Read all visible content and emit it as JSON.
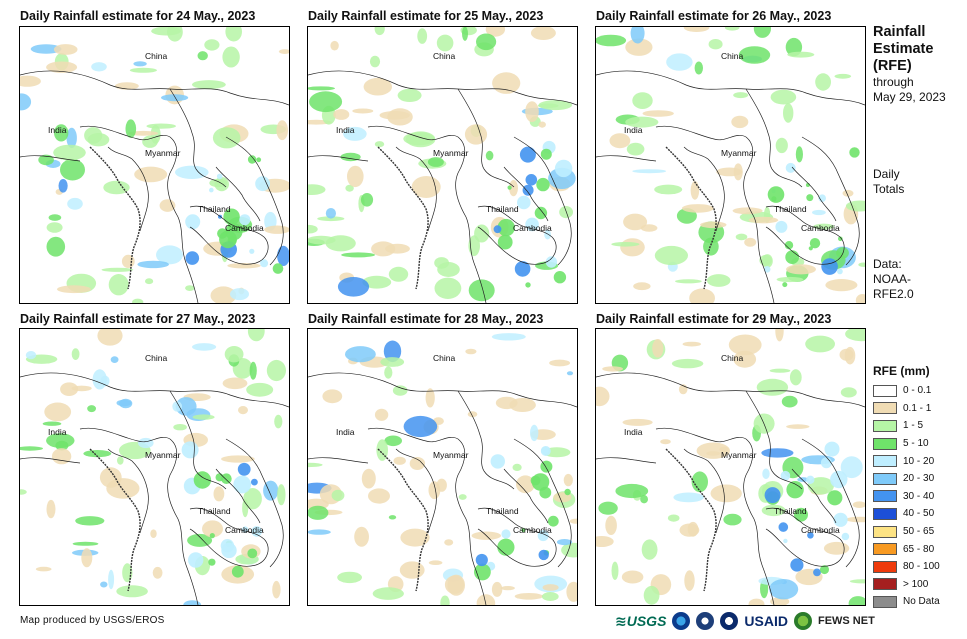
{
  "panels": [
    {
      "title": "Daily Rainfall estimate for 24 May., 2023"
    },
    {
      "title": "Daily Rainfall estimate for 25 May., 2023"
    },
    {
      "title": "Daily Rainfall estimate for 26 May., 2023"
    },
    {
      "title": "Daily Rainfall estimate for 27 May., 2023"
    },
    {
      "title": "Daily Rainfall estimate for 28 May., 2023"
    },
    {
      "title": "Daily Rainfall estimate for 29 May., 2023"
    }
  ],
  "map_labels": {
    "china": "China",
    "india": "India",
    "myanmar": "Myanmar",
    "thailand": "Thailand",
    "cambodia": "Cambodia"
  },
  "sidebar": {
    "title_line1": "Rainfall",
    "title_line2": "Estimate",
    "title_line3": "(RFE)",
    "through": "through",
    "date": "May 29, 2023",
    "daily": "Daily",
    "totals": "Totals",
    "data_label": "Data:",
    "data_source1": "NOAA-",
    "data_source2": "RFE2.0"
  },
  "legend": {
    "title": "RFE (mm)",
    "items": [
      {
        "label": "0 - 0.1",
        "color": "#ffffff"
      },
      {
        "label": "0.1 - 1",
        "color": "#f0dcb4"
      },
      {
        "label": "1 - 5",
        "color": "#b6f5a6"
      },
      {
        "label": "5 - 10",
        "color": "#6fe36a"
      },
      {
        "label": "10 - 20",
        "color": "#bfeeff"
      },
      {
        "label": "20 - 30",
        "color": "#7fcaf9"
      },
      {
        "label": "30 - 40",
        "color": "#4393f0"
      },
      {
        "label": "40 - 50",
        "color": "#1c4fd8"
      },
      {
        "label": "50 - 65",
        "color": "#fde384"
      },
      {
        "label": "65 - 80",
        "color": "#f89a22"
      },
      {
        "label": "80 - 100",
        "color": "#ee3a0c"
      },
      {
        "label": "> 100",
        "color": "#a51f1f"
      },
      {
        "label": "No Data",
        "color": "#8c8c8c"
      }
    ]
  },
  "credit": "Map produced by USGS/EROS",
  "logos": {
    "usgs": "≋USGS",
    "usaid": "USAID",
    "fews": "FEWS NET"
  }
}
